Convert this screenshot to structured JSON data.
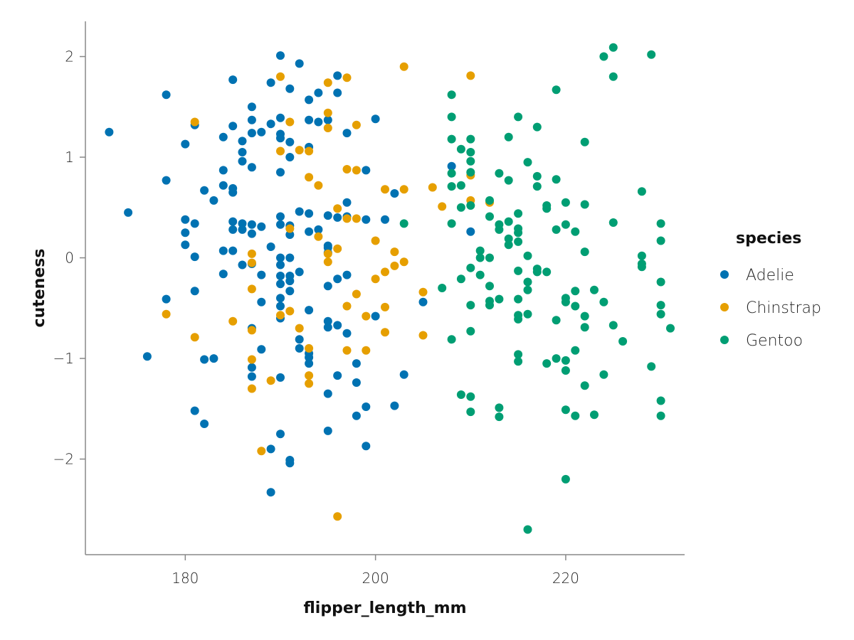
{
  "chart_data": {
    "type": "scatter",
    "xlabel": "flipper_length_mm",
    "ylabel": "cuteness",
    "xlim": [
      169.5,
      232.5
    ],
    "ylim": [
      -2.95,
      2.35
    ],
    "x_ticks": [
      180,
      200,
      220
    ],
    "y_ticks": [
      -2,
      -1,
      0,
      1,
      2
    ],
    "y_tick_labels": [
      "−2",
      "−1",
      "0",
      "1",
      "2"
    ],
    "grid": false,
    "legend_position": "right",
    "legend_title": "species",
    "series": [
      {
        "name": "Adelie",
        "color": "#0072b2",
        "points": [
          [
            172,
            1.25
          ],
          [
            174,
            0.45
          ],
          [
            176,
            -0.98
          ],
          [
            178,
            1.62
          ],
          [
            178,
            0.77
          ],
          [
            178,
            -0.41
          ],
          [
            180,
            1.13
          ],
          [
            180,
            0.38
          ],
          [
            180,
            0.25
          ],
          [
            180,
            0.13
          ],
          [
            181,
            1.32
          ],
          [
            181,
            0.34
          ],
          [
            181,
            0.01
          ],
          [
            181,
            -0.33
          ],
          [
            181,
            -1.52
          ],
          [
            182,
            0.67
          ],
          [
            182,
            -1.01
          ],
          [
            182,
            -1.65
          ],
          [
            183,
            0.57
          ],
          [
            183,
            -1.0
          ],
          [
            184,
            1.2
          ],
          [
            184,
            0.87
          ],
          [
            184,
            0.72
          ],
          [
            184,
            0.07
          ],
          [
            184,
            -0.16
          ],
          [
            185,
            1.77
          ],
          [
            185,
            1.31
          ],
          [
            185,
            0.69
          ],
          [
            185,
            0.65
          ],
          [
            185,
            0.36
          ],
          [
            185,
            0.28
          ],
          [
            185,
            0.07
          ],
          [
            186,
            1.16
          ],
          [
            186,
            1.05
          ],
          [
            186,
            0.96
          ],
          [
            186,
            0.34
          ],
          [
            186,
            0.28
          ],
          [
            186,
            -0.07
          ],
          [
            187,
            1.5
          ],
          [
            187,
            1.37
          ],
          [
            187,
            1.24
          ],
          [
            187,
            0.9
          ],
          [
            187,
            0.33
          ],
          [
            187,
            0.24
          ],
          [
            187,
            -0.06
          ],
          [
            187,
            -0.7
          ],
          [
            187,
            -1.09
          ],
          [
            187,
            -1.18
          ],
          [
            188,
            1.25
          ],
          [
            188,
            0.31
          ],
          [
            188,
            -0.17
          ],
          [
            188,
            -0.44
          ],
          [
            188,
            -0.91
          ],
          [
            189,
            1.74
          ],
          [
            189,
            1.33
          ],
          [
            189,
            0.11
          ],
          [
            189,
            -1.9
          ],
          [
            189,
            -2.33
          ],
          [
            190,
            2.01
          ],
          [
            190,
            1.39
          ],
          [
            190,
            1.23
          ],
          [
            190,
            1.19
          ],
          [
            190,
            0.85
          ],
          [
            190,
            0.41
          ],
          [
            190,
            0.33
          ],
          [
            190,
            0.0
          ],
          [
            190,
            -0.07
          ],
          [
            190,
            -0.18
          ],
          [
            190,
            -0.26
          ],
          [
            190,
            -0.4
          ],
          [
            190,
            -0.48
          ],
          [
            190,
            -0.6
          ],
          [
            190,
            -1.19
          ],
          [
            190,
            -1.75
          ],
          [
            191,
            1.68
          ],
          [
            191,
            1.15
          ],
          [
            191,
            1.0
          ],
          [
            191,
            0.32
          ],
          [
            191,
            0.23
          ],
          [
            191,
            0.0
          ],
          [
            191,
            -0.18
          ],
          [
            191,
            -0.23
          ],
          [
            191,
            -0.33
          ],
          [
            191,
            -2.01
          ],
          [
            191,
            -2.04
          ],
          [
            192,
            1.93
          ],
          [
            192,
            0.46
          ],
          [
            192,
            -0.14
          ],
          [
            192,
            -0.81
          ],
          [
            192,
            -0.9
          ],
          [
            193,
            1.57
          ],
          [
            193,
            1.37
          ],
          [
            193,
            1.1
          ],
          [
            193,
            0.44
          ],
          [
            193,
            0.26
          ],
          [
            193,
            -0.52
          ],
          [
            193,
            -0.95
          ],
          [
            193,
            -0.99
          ],
          [
            193,
            -1.05
          ],
          [
            194,
            1.64
          ],
          [
            194,
            1.35
          ],
          [
            194,
            0.28
          ],
          [
            195,
            1.37
          ],
          [
            195,
            0.42
          ],
          [
            195,
            0.12
          ],
          [
            195,
            0.1
          ],
          [
            195,
            0.05
          ],
          [
            195,
            -0.28
          ],
          [
            195,
            -0.63
          ],
          [
            195,
            -0.69
          ],
          [
            195,
            -1.35
          ],
          [
            195,
            -1.72
          ],
          [
            196,
            1.81
          ],
          [
            196,
            1.64
          ],
          [
            196,
            0.4
          ],
          [
            196,
            -0.21
          ],
          [
            196,
            -0.67
          ],
          [
            196,
            -1.17
          ],
          [
            197,
            1.24
          ],
          [
            197,
            0.55
          ],
          [
            197,
            0.41
          ],
          [
            197,
            -0.17
          ],
          [
            197,
            -0.75
          ],
          [
            198,
            -1.05
          ],
          [
            198,
            -1.24
          ],
          [
            198,
            -1.57
          ],
          [
            199,
            0.87
          ],
          [
            199,
            0.38
          ],
          [
            199,
            -1.48
          ],
          [
            199,
            -1.87
          ],
          [
            200,
            1.38
          ],
          [
            200,
            -0.58
          ],
          [
            201,
            0.38
          ],
          [
            202,
            0.64
          ],
          [
            202,
            -1.47
          ],
          [
            203,
            -1.16
          ],
          [
            205,
            -0.44
          ],
          [
            208,
            0.91
          ],
          [
            210,
            0.26
          ]
        ]
      },
      {
        "name": "Chinstrap",
        "color": "#e69f00",
        "points": [
          [
            178,
            -0.56
          ],
          [
            181,
            1.35
          ],
          [
            181,
            -0.79
          ],
          [
            185,
            -0.63
          ],
          [
            187,
            0.04
          ],
          [
            187,
            -0.05
          ],
          [
            187,
            -0.31
          ],
          [
            187,
            -0.72
          ],
          [
            187,
            -1.01
          ],
          [
            187,
            -1.3
          ],
          [
            188,
            -1.92
          ],
          [
            189,
            -1.22
          ],
          [
            190,
            1.8
          ],
          [
            190,
            1.06
          ],
          [
            190,
            -0.57
          ],
          [
            191,
            1.35
          ],
          [
            191,
            0.29
          ],
          [
            191,
            -0.53
          ],
          [
            192,
            1.07
          ],
          [
            192,
            -0.7
          ],
          [
            193,
            1.06
          ],
          [
            193,
            0.8
          ],
          [
            193,
            -0.9
          ],
          [
            193,
            -1.17
          ],
          [
            193,
            -1.25
          ],
          [
            194,
            0.72
          ],
          [
            194,
            0.21
          ],
          [
            195,
            1.74
          ],
          [
            195,
            1.44
          ],
          [
            195,
            1.29
          ],
          [
            195,
            0.04
          ],
          [
            195,
            -0.04
          ],
          [
            196,
            0.49
          ],
          [
            196,
            0.09
          ],
          [
            196,
            -2.57
          ],
          [
            197,
            1.79
          ],
          [
            197,
            0.88
          ],
          [
            197,
            0.39
          ],
          [
            197,
            -0.48
          ],
          [
            197,
            -0.92
          ],
          [
            198,
            1.32
          ],
          [
            198,
            0.87
          ],
          [
            198,
            0.39
          ],
          [
            198,
            -0.36
          ],
          [
            199,
            -0.58
          ],
          [
            199,
            -0.92
          ],
          [
            200,
            0.17
          ],
          [
            200,
            -0.21
          ],
          [
            201,
            0.68
          ],
          [
            201,
            -0.14
          ],
          [
            201,
            -0.49
          ],
          [
            201,
            -0.74
          ],
          [
            202,
            0.06
          ],
          [
            202,
            -0.08
          ],
          [
            203,
            1.9
          ],
          [
            203,
            0.68
          ],
          [
            203,
            -0.04
          ],
          [
            205,
            -0.34
          ],
          [
            205,
            -0.77
          ],
          [
            206,
            0.7
          ],
          [
            207,
            0.51
          ],
          [
            210,
            1.81
          ],
          [
            210,
            0.82
          ],
          [
            210,
            0.57
          ],
          [
            212,
            0.55
          ]
        ]
      },
      {
        "name": "Gentoo",
        "color": "#009e73",
        "points": [
          [
            203,
            0.34
          ],
          [
            207,
            -0.3
          ],
          [
            208,
            1.62
          ],
          [
            208,
            1.4
          ],
          [
            208,
            1.18
          ],
          [
            208,
            0.84
          ],
          [
            208,
            0.71
          ],
          [
            208,
            0.34
          ],
          [
            208,
            -0.81
          ],
          [
            209,
            1.08
          ],
          [
            209,
            0.72
          ],
          [
            209,
            0.5
          ],
          [
            209,
            -0.21
          ],
          [
            209,
            -1.36
          ],
          [
            210,
            1.18
          ],
          [
            210,
            1.05
          ],
          [
            210,
            0.96
          ],
          [
            210,
            0.85
          ],
          [
            210,
            0.52
          ],
          [
            210,
            -0.1
          ],
          [
            210,
            -0.47
          ],
          [
            210,
            -0.73
          ],
          [
            210,
            -1.38
          ],
          [
            210,
            -1.53
          ],
          [
            211,
            0.07
          ],
          [
            211,
            0.0
          ],
          [
            211,
            -0.17
          ],
          [
            212,
            0.57
          ],
          [
            212,
            0.41
          ],
          [
            212,
            0.0
          ],
          [
            212,
            -0.28
          ],
          [
            212,
            -0.43
          ],
          [
            212,
            -0.47
          ],
          [
            213,
            0.84
          ],
          [
            213,
            0.33
          ],
          [
            213,
            0.28
          ],
          [
            213,
            -0.41
          ],
          [
            213,
            -1.49
          ],
          [
            213,
            -1.58
          ],
          [
            214,
            1.2
          ],
          [
            214,
            0.77
          ],
          [
            214,
            0.36
          ],
          [
            214,
            0.19
          ],
          [
            214,
            0.13
          ],
          [
            215,
            1.4
          ],
          [
            215,
            0.44
          ],
          [
            215,
            0.29
          ],
          [
            215,
            0.25
          ],
          [
            215,
            0.16
          ],
          [
            215,
            -0.13
          ],
          [
            215,
            -0.41
          ],
          [
            215,
            -0.57
          ],
          [
            215,
            -0.61
          ],
          [
            215,
            -0.96
          ],
          [
            215,
            -1.03
          ],
          [
            216,
            0.95
          ],
          [
            216,
            0.02
          ],
          [
            216,
            -0.24
          ],
          [
            216,
            -0.32
          ],
          [
            216,
            -0.56
          ],
          [
            216,
            -2.7
          ],
          [
            217,
            1.3
          ],
          [
            217,
            0.81
          ],
          [
            217,
            0.71
          ],
          [
            217,
            -0.11
          ],
          [
            217,
            -0.14
          ],
          [
            218,
            0.52
          ],
          [
            218,
            0.49
          ],
          [
            218,
            -0.14
          ],
          [
            218,
            -1.05
          ],
          [
            219,
            1.67
          ],
          [
            219,
            0.78
          ],
          [
            219,
            0.28
          ],
          [
            219,
            -0.62
          ],
          [
            219,
            -1.0
          ],
          [
            220,
            0.55
          ],
          [
            220,
            0.33
          ],
          [
            220,
            -0.4
          ],
          [
            220,
            -0.44
          ],
          [
            220,
            -1.02
          ],
          [
            220,
            -1.12
          ],
          [
            220,
            -1.51
          ],
          [
            220,
            -2.2
          ],
          [
            221,
            0.26
          ],
          [
            221,
            -0.33
          ],
          [
            221,
            -0.48
          ],
          [
            221,
            -0.92
          ],
          [
            221,
            -1.57
          ],
          [
            222,
            1.15
          ],
          [
            222,
            0.53
          ],
          [
            222,
            0.06
          ],
          [
            222,
            -0.58
          ],
          [
            222,
            -0.69
          ],
          [
            222,
            -1.27
          ],
          [
            223,
            -0.32
          ],
          [
            223,
            -1.56
          ],
          [
            224,
            2.0
          ],
          [
            224,
            -0.44
          ],
          [
            224,
            -1.16
          ],
          [
            225,
            2.09
          ],
          [
            225,
            1.8
          ],
          [
            225,
            0.35
          ],
          [
            225,
            -0.67
          ],
          [
            226,
            -0.83
          ],
          [
            228,
            0.66
          ],
          [
            228,
            0.02
          ],
          [
            228,
            -0.06
          ],
          [
            228,
            -0.09
          ],
          [
            229,
            2.02
          ],
          [
            229,
            -1.08
          ],
          [
            230,
            0.34
          ],
          [
            230,
            0.17
          ],
          [
            230,
            -0.24
          ],
          [
            230,
            -0.47
          ],
          [
            230,
            -0.56
          ],
          [
            230,
            -1.42
          ],
          [
            230,
            -1.57
          ],
          [
            231,
            -0.7
          ]
        ]
      }
    ]
  }
}
